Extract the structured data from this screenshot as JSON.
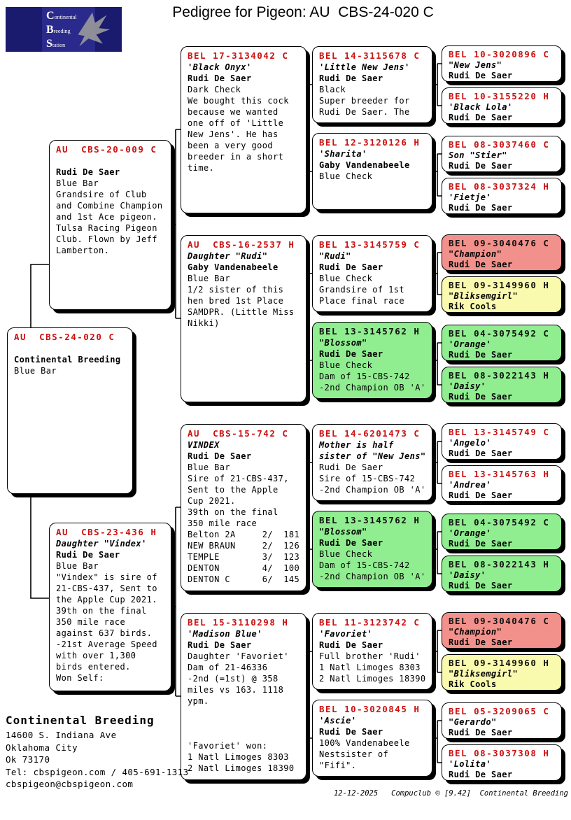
{
  "title": "Pedigree for Pigeon: AU  CBS-24-020 C",
  "logo": {
    "lines": [
      "Continental",
      "Breeding",
      "Station"
    ]
  },
  "colors": {
    "ring_red": "#cc1111",
    "green": "#90ee90",
    "pink": "#f2918b",
    "yellow": "#fafaaf",
    "navy": "#1a1a6e"
  },
  "boxes": [
    {
      "ring": "AU  CBS-24-020 C",
      "bg": "white",
      "lines": [
        [
          "b",
          ""
        ],
        [
          "o",
          "Continental Breeding"
        ],
        [
          "p",
          "Blue Bar"
        ]
      ]
    },
    {
      "ring": "AU  CBS-20-009 C",
      "bg": "white",
      "lines": [
        [
          "b",
          ""
        ],
        [
          "o",
          "Rudi De Saer"
        ],
        [
          "p",
          "Blue Bar"
        ],
        [
          "p",
          "Grandsire of Club"
        ],
        [
          "p",
          "and Combine Champion"
        ],
        [
          "p",
          "and 1st Ace pigeon."
        ],
        [
          "p",
          "Tulsa Racing Pigeon"
        ],
        [
          "p",
          "Club. Flown by Jeff"
        ],
        [
          "p",
          "Lamberton."
        ]
      ]
    },
    {
      "ring": "AU  CBS-23-436 H",
      "bg": "white",
      "lines": [
        [
          "n",
          "Daughter \"Vindex'"
        ],
        [
          "o",
          "Rudi De Saer"
        ],
        [
          "p",
          "Blue Bar"
        ],
        [
          "p",
          "\"Vindex\" is sire of"
        ],
        [
          "p",
          "21-CBS-437, Sent to"
        ],
        [
          "p",
          "the Apple Cup 2021."
        ],
        [
          "p",
          "39th on the final"
        ],
        [
          "p",
          "350 mile race"
        ],
        [
          "p",
          "against 637 birds."
        ],
        [
          "p",
          "-21st Average Speed"
        ],
        [
          "p",
          "with over 1,300"
        ],
        [
          "p",
          "birds entered."
        ],
        [
          "p",
          "Won Self:"
        ]
      ]
    },
    {
      "ring": "BEL 17-3134042 C",
      "bg": "white",
      "lines": [
        [
          "n",
          "'Black Onyx'"
        ],
        [
          "o",
          "Rudi De Saer"
        ],
        [
          "p",
          "Dark Check"
        ],
        [
          "p",
          "We bought this cock"
        ],
        [
          "p",
          "because we wanted"
        ],
        [
          "p",
          "one off of 'Little"
        ],
        [
          "p",
          "New Jens'. He has"
        ],
        [
          "p",
          "been a very good"
        ],
        [
          "p",
          "breeder in a short"
        ],
        [
          "p",
          "time."
        ]
      ]
    },
    {
      "ring": "AU  CBS-16-2537 H",
      "bg": "white",
      "lines": [
        [
          "n",
          "Daughter \"Rudi\""
        ],
        [
          "o",
          "Gaby Vandenabeele"
        ],
        [
          "p",
          "Blue Bar"
        ],
        [
          "p",
          "1/2 sister of this"
        ],
        [
          "p",
          "hen bred 1st Place"
        ],
        [
          "p",
          "SAMDPR. (Little Miss"
        ],
        [
          "p",
          "Nikki)"
        ]
      ]
    },
    {
      "ring": "AU  CBS-15-742 C",
      "bg": "white",
      "lines": [
        [
          "n",
          "VINDEX"
        ],
        [
          "o",
          "Rudi De Saer"
        ],
        [
          "p",
          "Blue Bar"
        ],
        [
          "p",
          "Sire of 21-CBS-437,"
        ],
        [
          "p",
          "Sent to the Apple"
        ],
        [
          "p",
          "Cup 2021."
        ],
        [
          "p",
          "39th on the final"
        ],
        [
          "p",
          "350 mile race"
        ],
        [
          "p",
          "Belton 2A     2/  181"
        ],
        [
          "p",
          "NEW BRAUN     2/  126"
        ],
        [
          "p",
          "TEMPLE        3/  123"
        ],
        [
          "p",
          "DENTON        4/  100"
        ],
        [
          "p",
          "DENTON C      6/  145"
        ]
      ]
    },
    {
      "ring": "BEL 15-3110298 H",
      "bg": "white",
      "lines": [
        [
          "n",
          "'Madison Blue'"
        ],
        [
          "o",
          "Rudi De Saer"
        ],
        [
          "p",
          "Daughter 'Favoriet'"
        ],
        [
          "p",
          "Dam of 21-46336"
        ],
        [
          "p",
          "-2nd (=1st) @ 358"
        ],
        [
          "p",
          "miles vs 163. 1118"
        ],
        [
          "p",
          "ypm."
        ],
        [
          "b",
          ""
        ],
        [
          "b",
          ""
        ],
        [
          "b",
          ""
        ],
        [
          "p",
          "'Favoriet' won:"
        ],
        [
          "p",
          "1 Natl Limoges 8303"
        ],
        [
          "p",
          "2 Natl Limoges 18390"
        ]
      ]
    },
    {
      "ring": "BEL 14-3115678 C",
      "bg": "white",
      "lines": [
        [
          "n",
          "'Little New Jens'"
        ],
        [
          "o",
          "Rudi De Saer"
        ],
        [
          "p",
          "Black"
        ],
        [
          "p",
          "Super breeder for"
        ],
        [
          "p",
          "Rudi De Saer. The"
        ]
      ]
    },
    {
      "ring": "BEL 12-3120126 H",
      "bg": "white",
      "lines": [
        [
          "n",
          "'Sharita'"
        ],
        [
          "o",
          "Gaby Vandenabeele"
        ],
        [
          "p",
          "Blue Check"
        ]
      ]
    },
    {
      "ring": "BEL 13-3145759 C",
      "bg": "white",
      "lines": [
        [
          "n",
          "\"Rudi\""
        ],
        [
          "o",
          "Rudi De Saer"
        ],
        [
          "p",
          "Blue Check"
        ],
        [
          "p",
          "Grandsire of 1st"
        ],
        [
          "p",
          "Place final race"
        ]
      ]
    },
    {
      "ring": "BEL 13-3145762 H",
      "bg": "green",
      "lines": [
        [
          "n",
          "\"Blossom\""
        ],
        [
          "o",
          "Rudi De Saer"
        ],
        [
          "p",
          "Blue Check"
        ],
        [
          "p",
          "Dam of 15-CBS-742"
        ],
        [
          "p",
          "-2nd Champion OB 'A'"
        ]
      ]
    },
    {
      "ring": "BEL 14-6201473 C",
      "bg": "white",
      "lines": [
        [
          "n",
          "Mother is half"
        ],
        [
          "n",
          "sister of \"New Jens\""
        ],
        [
          "p",
          "Rudi De Saer"
        ],
        [
          "p",
          "Sire of 15-CBS-742"
        ],
        [
          "p",
          "-2nd Champion OB 'A'"
        ]
      ]
    },
    {
      "ring": "BEL 13-3145762 H",
      "bg": "green",
      "lines": [
        [
          "n",
          "\"Blossom\""
        ],
        [
          "o",
          "Rudi De Saer"
        ],
        [
          "p",
          "Blue Check"
        ],
        [
          "p",
          "Dam of 15-CBS-742"
        ],
        [
          "p",
          "-2nd Champion OB 'A'"
        ]
      ]
    },
    {
      "ring": "BEL 11-3123742 C",
      "bg": "white",
      "lines": [
        [
          "n",
          "'Favoriet'"
        ],
        [
          "o",
          "Rudi De Saer"
        ],
        [
          "p",
          "Full brother 'Rudi'"
        ],
        [
          "p",
          "1 Natl Limoges 8303"
        ],
        [
          "p",
          "2 Natl Limoges 18390"
        ]
      ]
    },
    {
      "ring": "BEL 10-3020845 H",
      "bg": "white",
      "lines": [
        [
          "n",
          "'Ascie'"
        ],
        [
          "o",
          "Rudi De Saer"
        ],
        [
          "p",
          "100% Vandenabeele"
        ],
        [
          "p",
          "Nestsister of"
        ],
        [
          "p",
          "\"Fifi\"."
        ]
      ]
    },
    {
      "ring": "BEL 10-3020896 C",
      "bg": "white",
      "lines": [
        [
          "n",
          "\"New Jens\""
        ],
        [
          "o",
          "Rudi De Saer"
        ]
      ]
    },
    {
      "ring": "BEL 10-3155220 H",
      "bg": "white",
      "lines": [
        [
          "n",
          "'Black Lola'"
        ],
        [
          "o",
          "Rudi De Saer"
        ]
      ]
    },
    {
      "ring": "BEL 08-3037460 C",
      "bg": "white",
      "lines": [
        [
          "n",
          "Son \"Stier\""
        ],
        [
          "o",
          "Rudi De Saer"
        ]
      ]
    },
    {
      "ring": "BEL 08-3037324 H",
      "bg": "white",
      "lines": [
        [
          "n",
          "'Fietje'"
        ],
        [
          "o",
          "Rudi De Saer"
        ]
      ]
    },
    {
      "ring": "BEL 09-3040476 C",
      "bg": "pink",
      "lines": [
        [
          "n",
          "\"Champion\""
        ],
        [
          "o",
          "Rudi De Saer"
        ]
      ]
    },
    {
      "ring": "BEL 09-3149960 H",
      "bg": "yellow",
      "lines": [
        [
          "n",
          "\"Bliksemgirl\""
        ],
        [
          "o",
          "Rik Cools"
        ]
      ]
    },
    {
      "ring": "BEL 04-3075492 C",
      "bg": "green",
      "lines": [
        [
          "n",
          "'Orange'"
        ],
        [
          "o",
          "Rudi De Saer"
        ]
      ]
    },
    {
      "ring": "BEL 08-3022143 H",
      "bg": "green",
      "lines": [
        [
          "n",
          "'Daisy'"
        ],
        [
          "o",
          "Rudi De Saer"
        ]
      ]
    },
    {
      "ring": "BEL 13-3145749 C",
      "bg": "white",
      "lines": [
        [
          "n",
          "'Angelo'"
        ],
        [
          "o",
          "Rudi De Saer"
        ]
      ]
    },
    {
      "ring": "BEL 13-3145763 H",
      "bg": "white",
      "lines": [
        [
          "n",
          "'Andrea'"
        ],
        [
          "o",
          "Rudi De Saer"
        ]
      ]
    },
    {
      "ring": "BEL 04-3075492 C",
      "bg": "green",
      "lines": [
        [
          "n",
          "'Orange'"
        ],
        [
          "o",
          "Rudi De Saer"
        ]
      ]
    },
    {
      "ring": "BEL 08-3022143 H",
      "bg": "green",
      "lines": [
        [
          "n",
          "'Daisy'"
        ],
        [
          "o",
          "Rudi De Saer"
        ]
      ]
    },
    {
      "ring": "BEL 09-3040476 C",
      "bg": "pink",
      "lines": [
        [
          "n",
          "\"Champion\""
        ],
        [
          "o",
          "Rudi De Saer"
        ]
      ]
    },
    {
      "ring": "BEL 09-3149960 H",
      "bg": "yellow",
      "lines": [
        [
          "n",
          "\"Bliksemgirl\""
        ],
        [
          "o",
          "Rik Cools"
        ]
      ]
    },
    {
      "ring": "BEL 05-3209065 C",
      "bg": "white",
      "lines": [
        [
          "n",
          "\"Gerardo\""
        ],
        [
          "o",
          "Rudi De Saer"
        ]
      ]
    },
    {
      "ring": "BEL 08-3037308 H",
      "bg": "white",
      "lines": [
        [
          "n",
          "'Lolita'"
        ],
        [
          "o",
          "Rudi De Saer"
        ]
      ]
    }
  ],
  "footer": {
    "name": "Continental Breeding",
    "lines": [
      "14600 S. Indiana Ave",
      "Oklahoma City",
      "Ok 73170",
      "Tel: cbspigeon.com / 405-691-1313",
      "cbspigeon@cbspigeon.com"
    ]
  },
  "credits": "12-12-2025   Compuclub © [9.42]  Continental Breeding"
}
